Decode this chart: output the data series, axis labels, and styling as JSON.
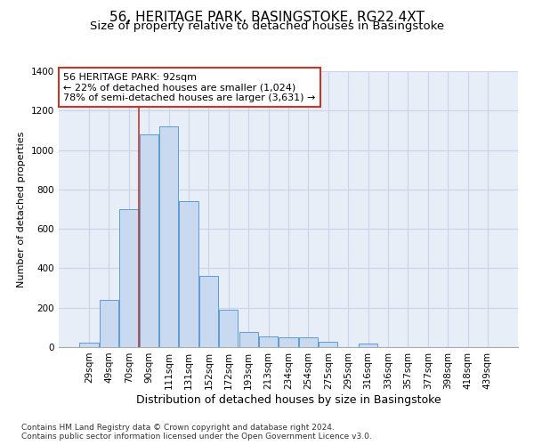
{
  "title1": "56, HERITAGE PARK, BASINGSTOKE, RG22 4XT",
  "title2": "Size of property relative to detached houses in Basingstoke",
  "xlabel": "Distribution of detached houses by size in Basingstoke",
  "ylabel": "Number of detached properties",
  "categories": [
    "29sqm",
    "49sqm",
    "70sqm",
    "90sqm",
    "111sqm",
    "131sqm",
    "152sqm",
    "172sqm",
    "193sqm",
    "213sqm",
    "234sqm",
    "254sqm",
    "275sqm",
    "295sqm",
    "316sqm",
    "336sqm",
    "357sqm",
    "377sqm",
    "398sqm",
    "418sqm",
    "439sqm"
  ],
  "values": [
    22,
    240,
    700,
    1080,
    1120,
    740,
    360,
    190,
    75,
    55,
    50,
    50,
    25,
    0,
    20,
    0,
    0,
    0,
    0,
    0,
    0
  ],
  "bar_color": "#c9d9f0",
  "bar_edge_color": "#5b9bd5",
  "vline_color": "#c0392b",
  "vline_x": 2.5,
  "annotation_text": "56 HERITAGE PARK: 92sqm\n← 22% of detached houses are smaller (1,024)\n78% of semi-detached houses are larger (3,631) →",
  "annotation_box_color": "#c0392b",
  "ylim": [
    0,
    1400
  ],
  "yticks": [
    0,
    200,
    400,
    600,
    800,
    1000,
    1200,
    1400
  ],
  "grid_color": "#c8d4e8",
  "background_color": "#e8eef8",
  "footer": "Contains HM Land Registry data © Crown copyright and database right 2024.\nContains public sector information licensed under the Open Government Licence v3.0.",
  "title1_fontsize": 11,
  "title2_fontsize": 9.5,
  "xlabel_fontsize": 9,
  "ylabel_fontsize": 8,
  "tick_fontsize": 7.5,
  "annotation_fontsize": 8,
  "footer_fontsize": 6.5
}
